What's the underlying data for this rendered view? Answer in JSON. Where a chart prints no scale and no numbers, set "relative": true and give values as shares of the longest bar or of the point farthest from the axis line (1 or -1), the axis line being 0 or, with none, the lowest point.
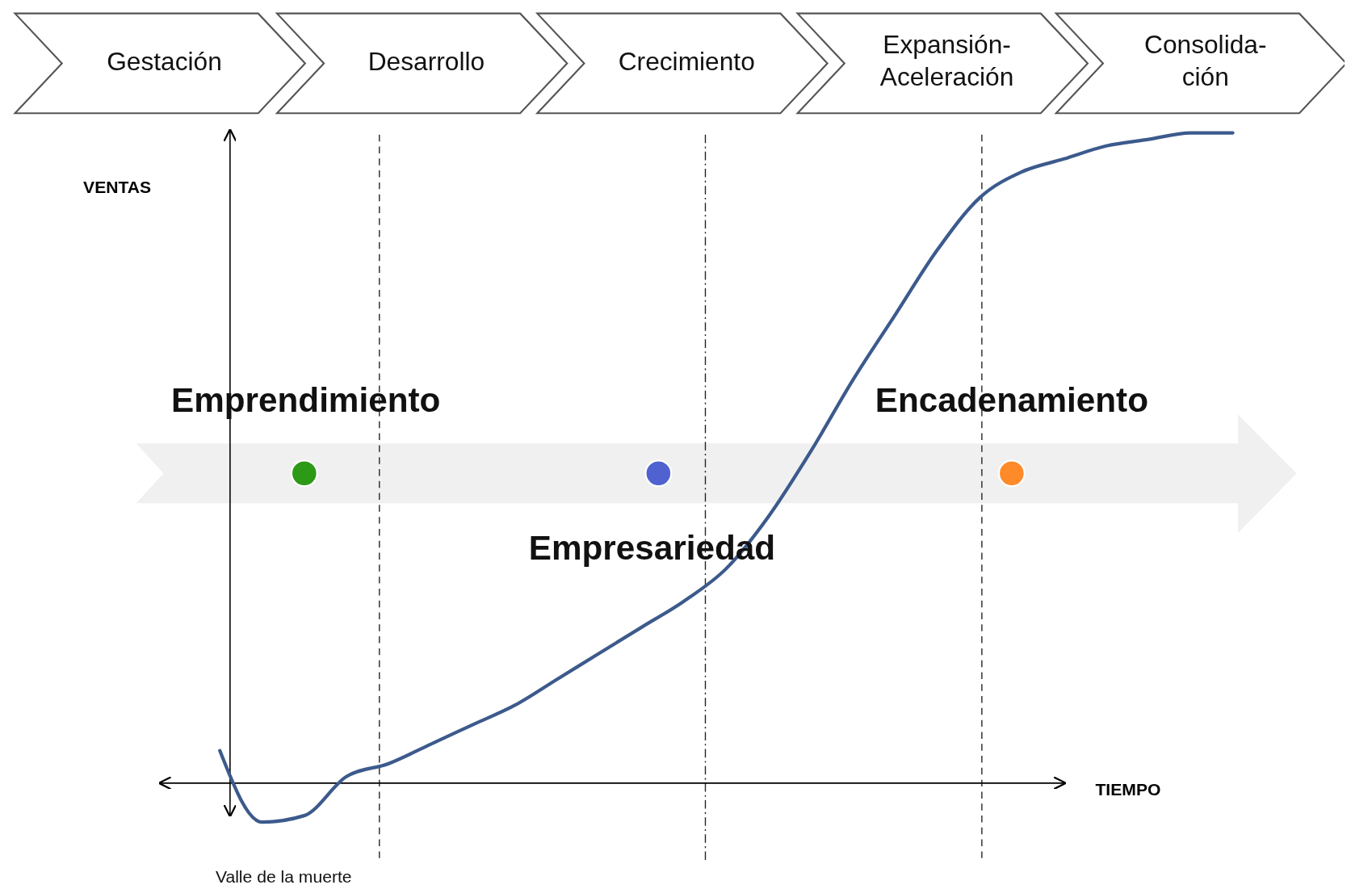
{
  "chart_data": {
    "type": "line",
    "relative": true,
    "xlabel": "TIEMPO",
    "ylabel": "VENTAS",
    "categories": [
      null,
      null,
      null,
      null,
      null,
      null,
      null,
      null,
      null,
      null,
      null,
      null,
      null,
      null,
      null,
      null,
      null,
      null,
      null,
      null,
      null,
      null,
      null,
      null,
      null
    ],
    "series": [
      {
        "color": "#3c5a8c",
        "values": [
          0.05,
          -0.06,
          -0.05,
          0.01,
          0.03,
          0.06,
          0.09,
          0.12,
          0.16,
          0.2,
          0.24,
          0.28,
          0.33,
          0.41,
          0.51,
          0.62,
          0.72,
          0.82,
          0.9,
          0.94,
          0.96,
          0.98,
          0.99,
          1.0,
          1.0
        ]
      }
    ],
    "annotations": [
      "Gestación",
      "Desarrollo",
      "Crecimiento",
      "Expansión-\nAceleración",
      "Consolida-\nción",
      "Emprendimiento",
      "Empresariedad",
      "Encadenamiento",
      "Valle de la muerte"
    ],
    "marker": "none",
    "line_style": "solid",
    "grid": false
  }
}
